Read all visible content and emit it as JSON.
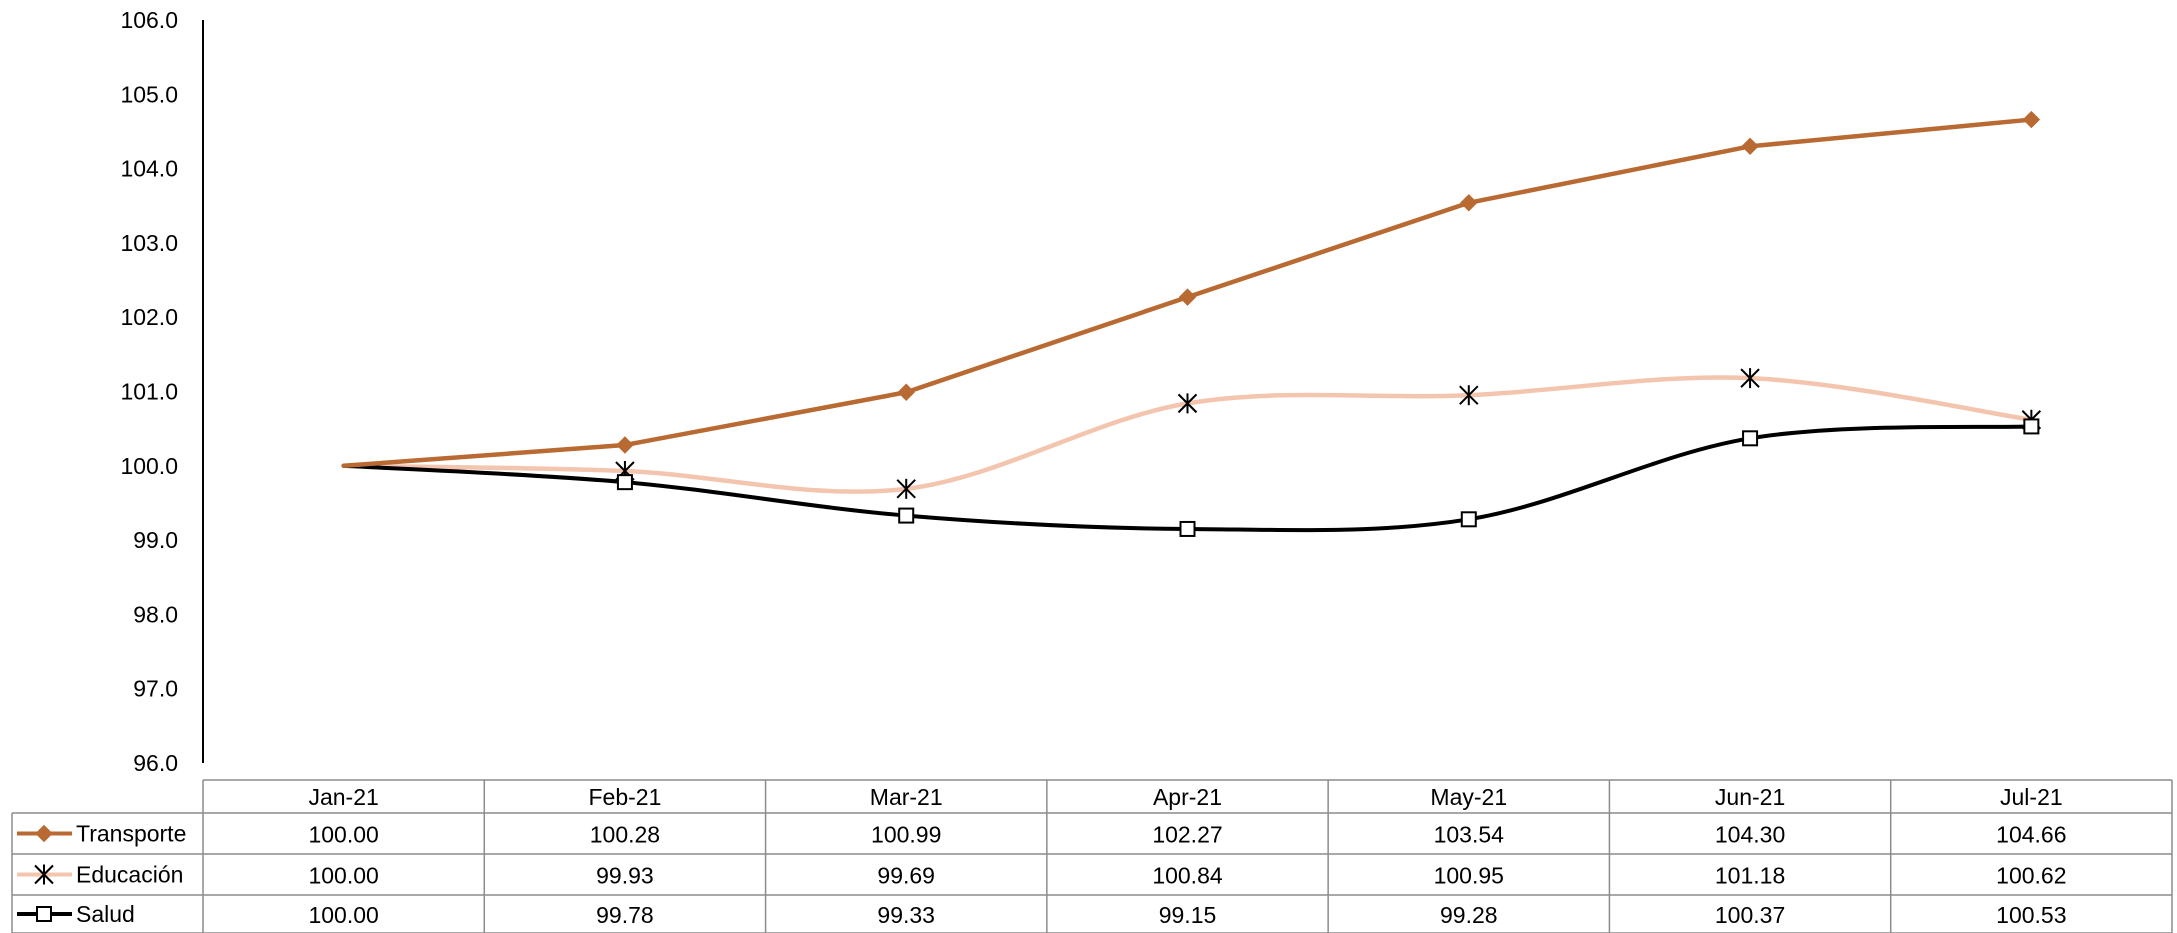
{
  "chart_data": {
    "type": "line",
    "title": "",
    "xlabel": "",
    "ylabel": "",
    "categories": [
      "Jan-21",
      "Feb-21",
      "Mar-21",
      "Apr-21",
      "May-21",
      "Jun-21",
      "Jul-21"
    ],
    "ylim": [
      96.0,
      106.0
    ],
    "yticks": [
      "96.0",
      "97.0",
      "98.0",
      "99.0",
      "100.0",
      "101.0",
      "102.0",
      "103.0",
      "104.0",
      "105.0",
      "106.0"
    ],
    "grid": false,
    "legend": "data-table-left",
    "series": [
      {
        "name": "Transporte",
        "color": "#B96A32",
        "marker": "diamond",
        "smooth": false,
        "values": [
          100.0,
          100.28,
          100.99,
          102.27,
          103.54,
          104.3,
          104.66
        ],
        "labels": [
          "100.00",
          "100.28",
          "100.99",
          "102.27",
          "103.54",
          "104.30",
          "104.66"
        ]
      },
      {
        "name": "Educación",
        "color": "#F4C5AE",
        "marker": "asterisk",
        "smooth": true,
        "values": [
          100.0,
          99.93,
          99.69,
          100.84,
          100.95,
          101.18,
          100.62
        ],
        "labels": [
          "100.00",
          "99.93",
          "99.69",
          "100.84",
          "100.95",
          "101.18",
          "100.62"
        ]
      },
      {
        "name": "Salud",
        "color": "#000000",
        "marker": "square",
        "smooth": true,
        "values": [
          100.0,
          99.78,
          99.33,
          99.15,
          99.28,
          100.37,
          100.53
        ],
        "labels": [
          "100.00",
          "99.78",
          "99.33",
          "99.15",
          "99.28",
          "100.37",
          "100.53"
        ]
      }
    ]
  }
}
